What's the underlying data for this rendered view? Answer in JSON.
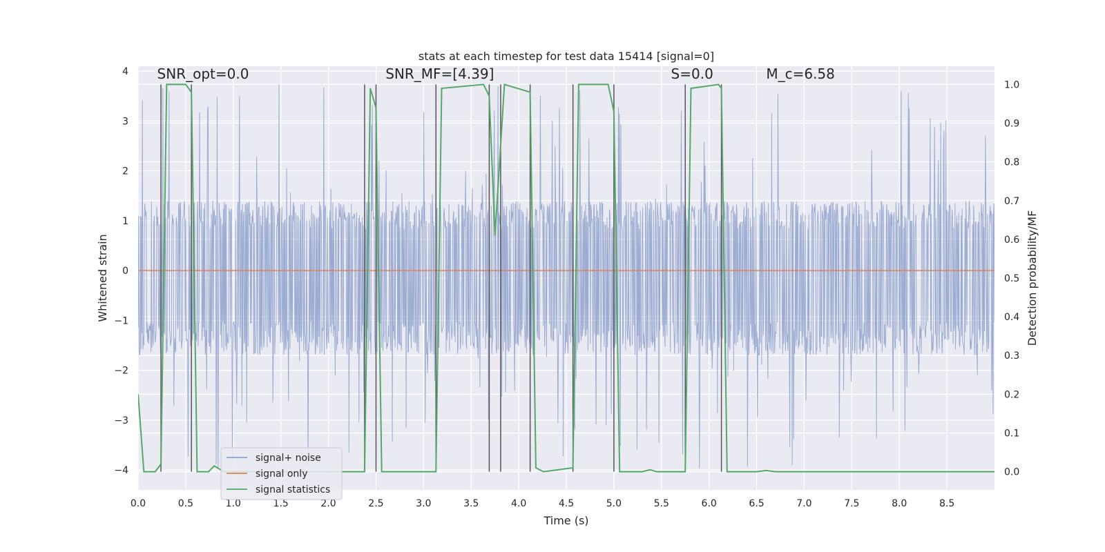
{
  "chart_data": {
    "type": "line",
    "title": "stats at each timestep for test data 15414 [signal=0]",
    "xlabel": "Time (s)",
    "ylabel": "Whitened strain",
    "y2label": "Detection probability/MF",
    "xlim": [
      0,
      9
    ],
    "ylim": [
      -4.4,
      4.1
    ],
    "y2lim": [
      -0.047,
      1.047
    ],
    "xticks": [
      0.0,
      0.5,
      1.0,
      1.5,
      2.0,
      2.5,
      3.0,
      3.5,
      4.0,
      4.5,
      5.0,
      5.5,
      6.0,
      6.5,
      7.0,
      7.5,
      8.0,
      8.5
    ],
    "xtick_labels": [
      "0.0",
      "0.5",
      "1.0",
      "1.5",
      "2.0",
      "2.5",
      "3.0",
      "3.5",
      "4.0",
      "4.5",
      "5.0",
      "5.5",
      "6.0",
      "6.5",
      "7.0",
      "7.5",
      "8.0",
      "8.5"
    ],
    "yticks": [
      -4,
      -3,
      -2,
      -1,
      0,
      1,
      2,
      3,
      4
    ],
    "ytick_labels": [
      "−4",
      "−3",
      "−2",
      "−1",
      "0",
      "1",
      "2",
      "3",
      "4"
    ],
    "y2ticks": [
      0.0,
      0.1,
      0.2,
      0.3,
      0.4,
      0.5,
      0.6,
      0.7,
      0.8,
      0.9,
      1.0
    ],
    "y2tick_labels": [
      "0.0",
      "0.1",
      "0.2",
      "0.3",
      "0.4",
      "0.5",
      "0.6",
      "0.7",
      "0.8",
      "0.9",
      "1.0"
    ],
    "grid": true,
    "legend_position": "bottom-left",
    "annotations": [
      {
        "text": "SNR_opt=0.0",
        "x": 0.2,
        "y": 3.85
      },
      {
        "text": "SNR_MF=[4.39]",
        "x": 2.6,
        "y": 3.85
      },
      {
        "text": "S=0.0",
        "x": 5.6,
        "y": 3.85
      },
      {
        "text": "M_c=6.58",
        "x": 6.6,
        "y": 3.85
      }
    ],
    "vlines": [
      0.24,
      0.56,
      2.38,
      2.5,
      3.13,
      3.69,
      3.81,
      4.12,
      4.57,
      5.0,
      5.75,
      6.13
    ],
    "series": [
      {
        "name": "signal+ noise",
        "color": "#8da0cb",
        "kind": "noise",
        "envelope_core": [
          -1.7,
          1.4
        ],
        "envelope_peak": [
          -4.0,
          3.8
        ],
        "values": []
      },
      {
        "name": "signal only",
        "color": "#dd8452",
        "kind": "flat",
        "x": [
          0,
          9
        ],
        "values": [
          0,
          0
        ]
      },
      {
        "name": "signal statistics",
        "color": "#55a868",
        "axis": "right",
        "x": [
          0.0,
          0.06,
          0.18,
          0.24,
          0.3,
          0.5,
          0.56,
          0.62,
          0.74,
          0.8,
          0.9,
          2.38,
          2.44,
          2.5,
          2.56,
          3.13,
          3.19,
          3.63,
          3.69,
          3.75,
          3.85,
          4.12,
          4.18,
          4.26,
          4.57,
          4.63,
          4.94,
          5.0,
          5.06,
          5.3,
          5.38,
          5.45,
          5.75,
          5.81,
          6.1,
          6.13,
          6.19,
          6.5,
          6.6,
          6.7,
          7.2,
          8.5,
          9.0
        ],
        "values": [
          0.2,
          0.0,
          0.0,
          0.02,
          1.0,
          1.0,
          0.98,
          0.0,
          0.0,
          0.015,
          0.0,
          0.0,
          0.99,
          0.94,
          0.0,
          0.0,
          0.99,
          1.0,
          0.97,
          0.61,
          1.0,
          0.98,
          0.01,
          0.0,
          0.01,
          1.0,
          1.0,
          0.93,
          0.0,
          0.0,
          0.005,
          0.0,
          0.0,
          0.99,
          1.0,
          0.99,
          0.0,
          0.0,
          0.003,
          0.0,
          0.0,
          0.0,
          0.0
        ]
      }
    ]
  }
}
